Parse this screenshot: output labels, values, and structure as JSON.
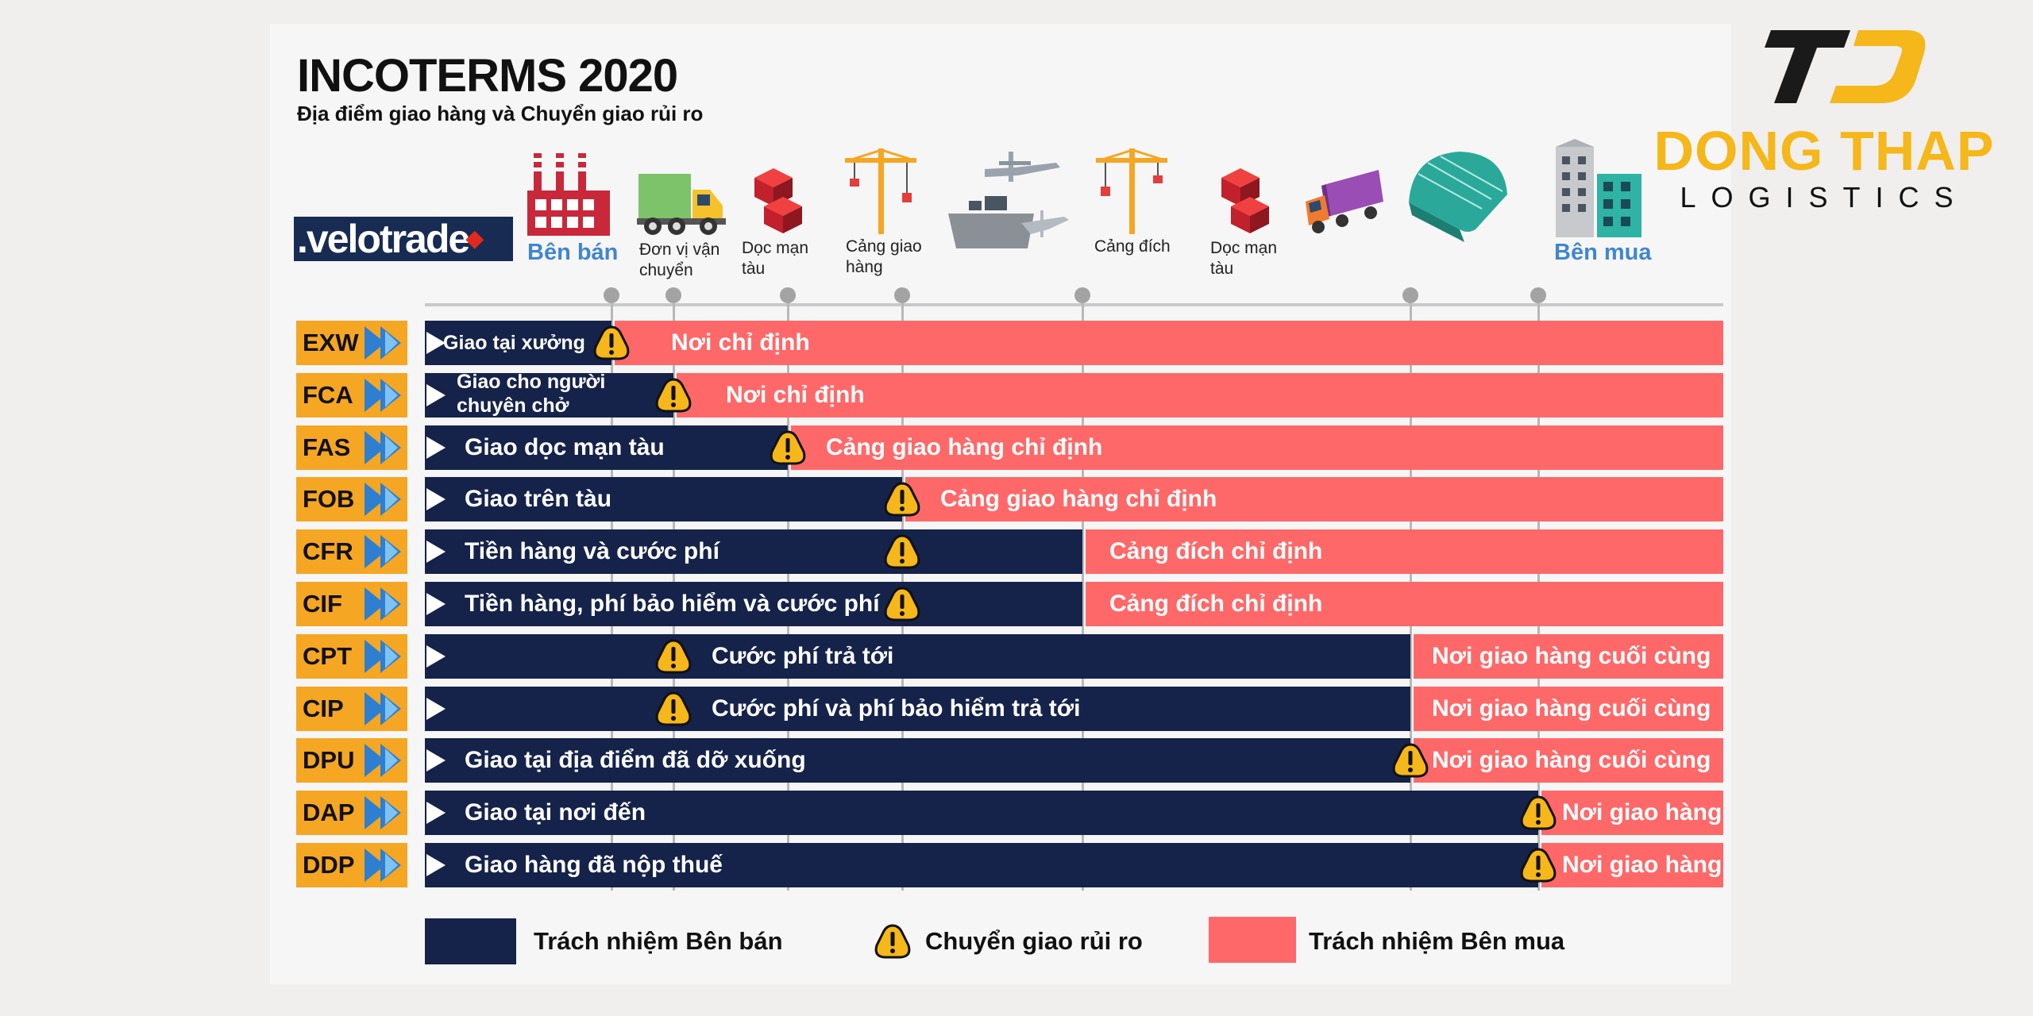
{
  "header": {
    "title": "INCOTERMS 2020",
    "subtitle": "Địa điểm giao hàng và Chuyển giao rủi ro"
  },
  "brand": {
    "velotrade": ".velotrade",
    "company_name": "DONG THAP",
    "company_sub": "LOGISTICS"
  },
  "stages": [
    {
      "label": "Bên bán",
      "icon": "factory-icon"
    },
    {
      "label": "Đơn vị vận chuyển",
      "icon": "truck-icon"
    },
    {
      "label": "Dọc mạn tàu",
      "icon": "containers-icon"
    },
    {
      "label": "Cảng giao hàng",
      "icon": "crane-icon"
    },
    {
      "label": "",
      "icon": "ship-plane-icon"
    },
    {
      "label": "Cảng đích",
      "icon": "crane-icon"
    },
    {
      "label": "Dọc mạn tàu",
      "icon": "containers-icon"
    },
    {
      "label": "",
      "icon": "lorry-icon"
    },
    {
      "label": "",
      "icon": "warehouse-icon"
    },
    {
      "label": "Bên mua",
      "icon": "buildings-icon"
    }
  ],
  "rows": [
    {
      "code": "EXW",
      "seller": "Giao tại xưởng",
      "buyer": "Nơi chỉ định"
    },
    {
      "code": "FCA",
      "seller": "Giao cho người chuyên chở",
      "buyer": "Nơi chỉ định"
    },
    {
      "code": "FAS",
      "seller": "Giao dọc mạn tàu",
      "buyer": "Cảng giao hàng chỉ định"
    },
    {
      "code": "FOB",
      "seller": "Giao trên tàu",
      "buyer": "Cảng giao hàng chỉ định"
    },
    {
      "code": "CFR",
      "seller": "Tiền hàng và cước phí",
      "buyer": "Cảng đích chỉ định"
    },
    {
      "code": "CIF",
      "seller": "Tiền hàng, phí bảo hiểm và cước phí",
      "buyer": "Cảng đích chỉ định"
    },
    {
      "code": "CPT",
      "seller": "Cước phí trả tới",
      "buyer": "Nơi giao hàng cuối cùng"
    },
    {
      "code": "CIP",
      "seller": "Cước phí và phí bảo hiểm trả tới",
      "buyer": "Nơi giao hàng cuối cùng"
    },
    {
      "code": "DPU",
      "seller": "Giao tại địa điểm đã dỡ xuống",
      "buyer": "Nơi giao hàng cuối cùng"
    },
    {
      "code": "DAP",
      "seller": "Giao tại nơi đến",
      "buyer": "Nơi giao hàng"
    },
    {
      "code": "DDP",
      "seller": "Giao hàng đã nộp thuế",
      "buyer": "Nơi giao hàng"
    }
  ],
  "legend": {
    "seller": "Trách nhiệm Bên bán",
    "risk": "Chuyển giao rủi ro",
    "buyer": "Trách nhiệm Bên mua"
  },
  "colors": {
    "seller": "#15234a",
    "buyer": "#ff6868",
    "code_bg": "#f5a623",
    "warning": "#f5b719"
  }
}
